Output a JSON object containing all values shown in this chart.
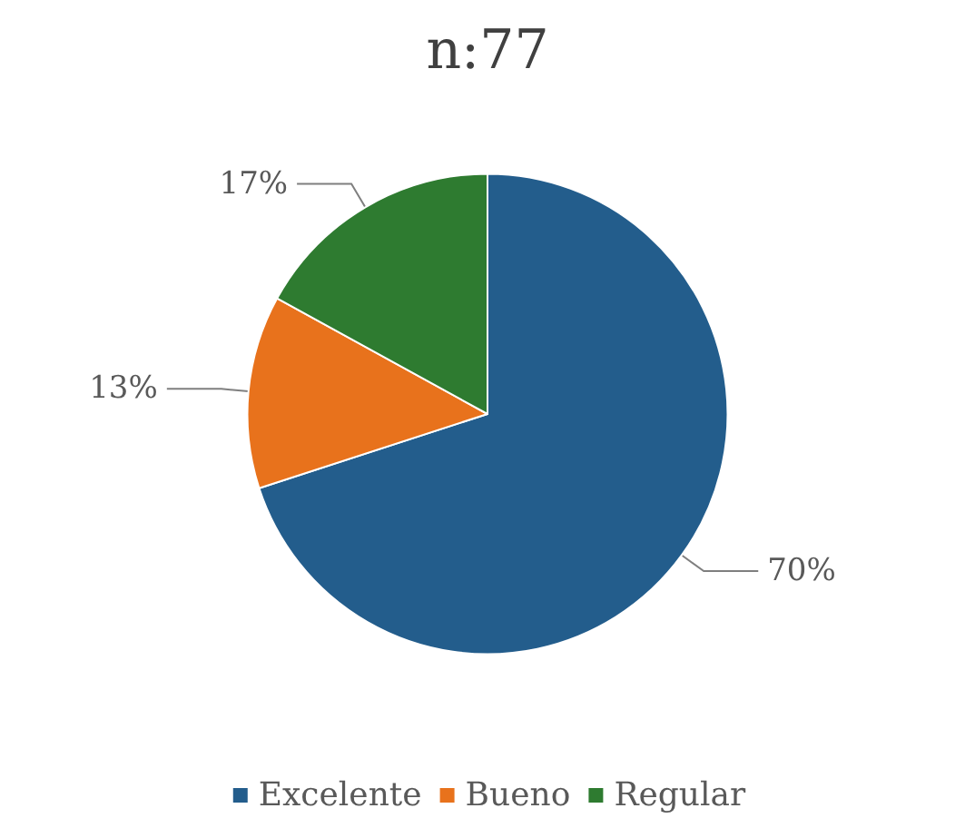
{
  "chart_data": {
    "type": "pie",
    "title": "n:77",
    "categories": [
      "Excelente",
      "Bueno",
      "Regular"
    ],
    "values": [
      70,
      13,
      17
    ],
    "value_labels": [
      "70%",
      "13%",
      "17%"
    ],
    "colors": [
      "#235d8c",
      "#e8721c",
      "#2e7b30"
    ],
    "legend": "bottom"
  }
}
